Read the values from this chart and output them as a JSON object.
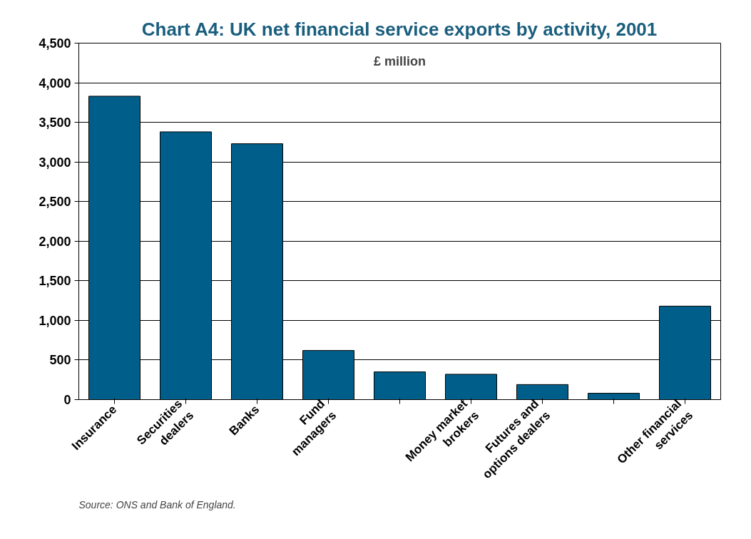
{
  "chart_data": {
    "type": "bar",
    "title": "Chart A4: UK net financial service exports by activity, 2001",
    "categories": [
      "Insurance",
      "Securities\ndealers",
      "Banks",
      "Fund\nmanagers",
      null,
      "Money market\nbrokers",
      "Futures and\noptions dealers",
      null,
      "Other financial\nservices"
    ],
    "values": [
      3830,
      3380,
      3230,
      620,
      350,
      320,
      190,
      80,
      1180
    ],
    "color": "#005f8a",
    "ylim": [
      0,
      4500
    ],
    "yticks": [
      0,
      500,
      {
        "value": 1000,
        "label": "1,000"
      },
      {
        "value": 1500,
        "label": "1,500"
      },
      {
        "value": 2000,
        "label": "2,000"
      },
      {
        "value": 2500,
        "label": "2,500"
      },
      {
        "value": 3000,
        "label": "3,000"
      },
      {
        "value": 3500,
        "label": "3,500"
      },
      {
        "value": 4000,
        "label": "4,000"
      },
      {
        "value": 4500,
        "label": "4,500"
      }
    ],
    "grid": "y",
    "annotations": [
      "£ million",
      "Source: ONS and Bank of England."
    ]
  }
}
